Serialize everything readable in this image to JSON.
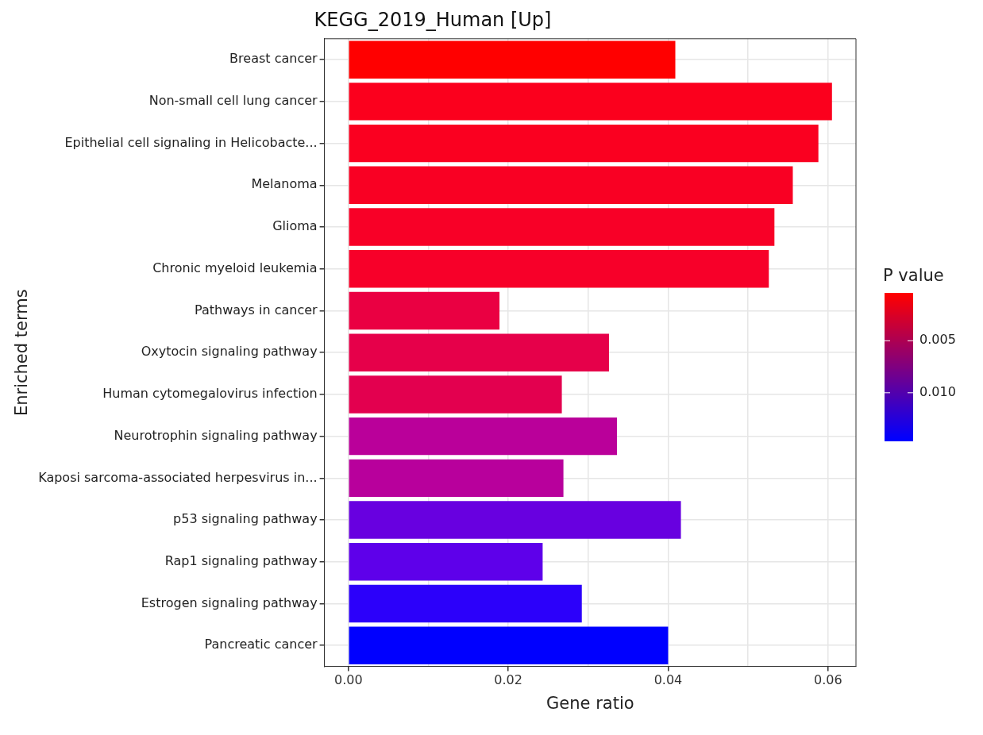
{
  "chart_data": {
    "type": "bar",
    "orientation": "horizontal",
    "title": "KEGG_2019_Human [Up]",
    "xlabel": "Gene ratio",
    "ylabel": "Enriched terms",
    "clabel": "P value",
    "categories": [
      "Breast cancer",
      "Non-small cell lung cancer",
      "Epithelial cell signaling in Helicobacte...",
      "Melanoma",
      "Glioma",
      "Chronic myeloid leukemia",
      "Pathways in cancer",
      "Oxytocin signaling pathway",
      "Human cytomegalovirus infection",
      "Neurotrophin signaling pathway",
      "Kaposi sarcoma-associated herpesvirus in...",
      "p53 signaling pathway",
      "Rap1 signaling pathway",
      "Estrogen signaling pathway",
      "Pancreatic cancer"
    ],
    "values": [
      0.0409,
      0.0605,
      0.0588,
      0.0556,
      0.0533,
      0.0526,
      0.0189,
      0.0326,
      0.0267,
      0.0336,
      0.0269,
      0.0416,
      0.0243,
      0.0292,
      0.04
    ],
    "colors": [
      "#ff0000",
      "#fb001d",
      "#fa0020",
      "#f90023",
      "#f80027",
      "#f70029",
      "#ea0042",
      "#e6004a",
      "#e3004f",
      "#ba009a",
      "#b8009c",
      "#6800e0",
      "#5e00ea",
      "#2c00fa",
      "#0000ff"
    ],
    "xlim": [
      -0.003,
      0.0635
    ],
    "xticks": [
      {
        "value": 0,
        "label": "0.00"
      },
      {
        "value": 0.01,
        "label": null
      },
      {
        "value": 0.02,
        "label": "0.02"
      },
      {
        "value": 0.03,
        "label": null
      },
      {
        "value": 0.04,
        "label": "0.04"
      },
      {
        "value": 0.05,
        "label": null
      },
      {
        "value": 0.06,
        "label": "0.06"
      }
    ],
    "clim": [
      0.0004,
      0.0146
    ],
    "cticks": [
      {
        "value": 0.005,
        "label": "0.005"
      },
      {
        "value": 0.01,
        "label": "0.010"
      }
    ],
    "grid": true,
    "legend": false
  }
}
